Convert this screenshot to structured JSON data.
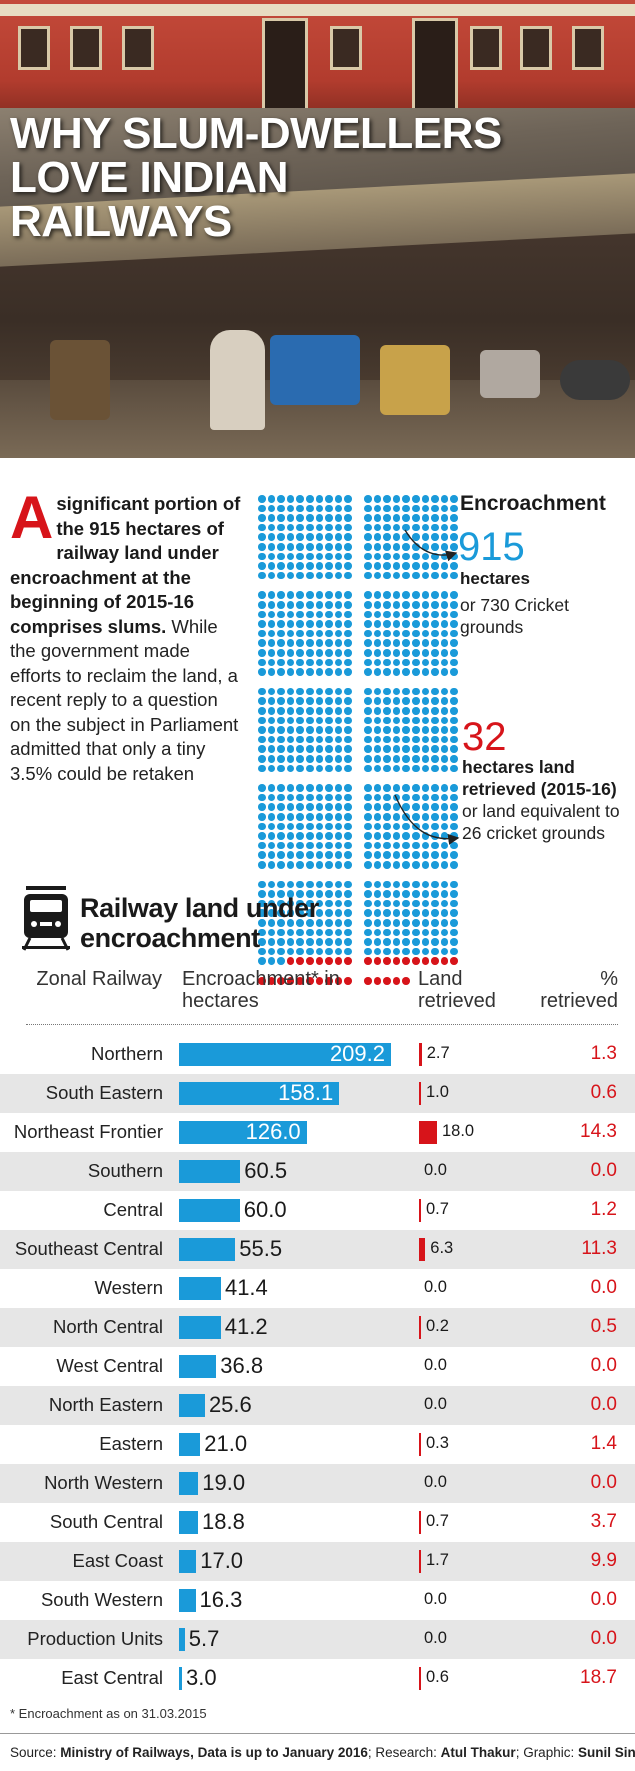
{
  "hero": {
    "title_lines": [
      "WHY SLUM-DWELLERS",
      "LOVE INDIAN",
      "RAILWAYS"
    ]
  },
  "intro": {
    "dropcap": "A",
    "lead": " significant portion of the 915 hectares of railway land under encroachment at the beginning of  2015-16 comprises slums.",
    "body": " While the government made efforts to reclaim the land, a recent reply to a question on the subject in Parliament admitted that only a tiny 3.5% could be retaken"
  },
  "pictogram": {
    "encroachment_label": "Encroachment",
    "encroachment_value": "915",
    "encroachment_unit": "hectares",
    "encroachment_cricket": "or 730 Cricket grounds",
    "retrieved_value": "32",
    "retrieved_label_bold": "hectares land retrieved (2015-16)",
    "retrieved_label_rest": " or land equivalent to 26 cricket grounds",
    "total_dots": 915,
    "red_dots": 32,
    "colors": {
      "blue": "#1a9ad9",
      "red": "#d7141a"
    }
  },
  "table": {
    "icon": "train-icon",
    "title_line1": "Railway land under",
    "title_line2": "encroachment",
    "col_zone": "Zonal Railway",
    "col_enc": "Encroachment* in hectares",
    "col_land": "Land retrieved",
    "col_pct": "% retrieved"
  },
  "chart_data": {
    "type": "table",
    "title": "Railway land under encroachment",
    "columns": [
      "Zonal Railway",
      "Encroachment* in hectares",
      "Land retrieved",
      "% retrieved"
    ],
    "rows": [
      {
        "zone": "Northern",
        "encroachment": "209.2",
        "retrieved": "2.7",
        "percent": "1.3"
      },
      {
        "zone": "South Eastern",
        "encroachment": "158.1",
        "retrieved": "1.0",
        "percent": "0.6"
      },
      {
        "zone": "Northeast Frontier",
        "encroachment": "126.0",
        "retrieved": "18.0",
        "percent": "14.3"
      },
      {
        "zone": "Southern",
        "encroachment": "60.5",
        "retrieved": "0.0",
        "percent": "0.0"
      },
      {
        "zone": "Central",
        "encroachment": "60.0",
        "retrieved": "0.7",
        "percent": "1.2"
      },
      {
        "zone": "Southeast Central",
        "encroachment": "55.5",
        "retrieved": "6.3",
        "percent": "11.3"
      },
      {
        "zone": "Western",
        "encroachment": "41.4",
        "retrieved": "0.0",
        "percent": "0.0"
      },
      {
        "zone": "North Central",
        "encroachment": "41.2",
        "retrieved": "0.2",
        "percent": "0.5"
      },
      {
        "zone": "West Central",
        "encroachment": "36.8",
        "retrieved": "0.0",
        "percent": "0.0"
      },
      {
        "zone": "North Eastern",
        "encroachment": "25.6",
        "retrieved": "0.0",
        "percent": "0.0"
      },
      {
        "zone": "Eastern",
        "encroachment": "21.0",
        "retrieved": "0.3",
        "percent": "1.4"
      },
      {
        "zone": "North Western",
        "encroachment": "19.0",
        "retrieved": "0.0",
        "percent": "0.0"
      },
      {
        "zone": "South Central",
        "encroachment": "18.8",
        "retrieved": "0.7",
        "percent": "3.7"
      },
      {
        "zone": "East Coast",
        "encroachment": "17.0",
        "retrieved": "1.7",
        "percent": "9.9"
      },
      {
        "zone": "South Western",
        "encroachment": "16.3",
        "retrieved": "0.0",
        "percent": "0.0"
      },
      {
        "zone": "Production Units",
        "encroachment": "5.7",
        "retrieved": "0.0",
        "percent": "0.0"
      },
      {
        "zone": "East Central",
        "encroachment": "3.0",
        "retrieved": "0.6",
        "percent": "18.7"
      }
    ],
    "colors": {
      "encroachment_bar": "#1a9ad9",
      "retrieved_bar": "#d7141a",
      "percent_text": "#d7141a"
    }
  },
  "footnote": "* Encroachment as on 31.03.2015",
  "source": {
    "l1": "Source: ",
    "b1": "Ministry of Railways, Data is up to January 2016",
    "l2": "; Research: ",
    "b2": "Atul Thakur",
    "l3": "; Graphic: ",
    "b3": "Sunil Singh"
  }
}
